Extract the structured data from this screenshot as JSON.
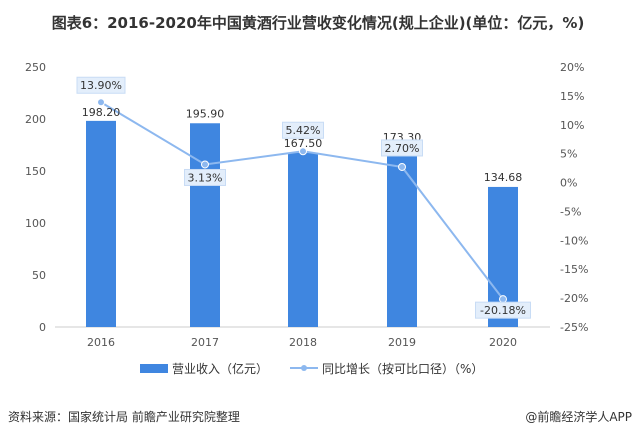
{
  "title": "图表6：2016-2020年中国黄酒行业营收变化情况(规上企业)(单位：亿元，%)",
  "source": "资料来源：国家统计局 前瞻产业研究院整理",
  "brand": "@前瞻经济学人APP",
  "chart_data": {
    "type": "bar+line",
    "categories": [
      "2016",
      "2017",
      "2018",
      "2019",
      "2020"
    ],
    "series": [
      {
        "name": "营业收入（亿元）",
        "type": "bar",
        "axis": "left",
        "values": [
          198.2,
          195.9,
          167.5,
          173.3,
          134.68
        ],
        "labels": [
          "198.20",
          "195.90",
          "167.50",
          "173.30",
          "134.68"
        ],
        "color": "#3f86e0"
      },
      {
        "name": "同比增长（按可比口径）（%）",
        "type": "line",
        "axis": "right",
        "values": [
          13.9,
          3.13,
          5.42,
          2.7,
          -20.18
        ],
        "labels": [
          "13.90%",
          "3.13%",
          "5.42%",
          "2.70%",
          "-20.18%"
        ],
        "color": "#8db8ef"
      }
    ],
    "left_axis": {
      "ylim": [
        0,
        250
      ],
      "ticks": [
        "0",
        "50",
        "100",
        "150",
        "200",
        "250"
      ]
    },
    "right_axis": {
      "ylim": [
        -25,
        20
      ],
      "ticks": [
        "-25%",
        "-20%",
        "-15%",
        "-10%",
        "-5%",
        "0%",
        "5%",
        "10%",
        "15%",
        "20%"
      ]
    },
    "grid": false,
    "legend": "bottom"
  }
}
